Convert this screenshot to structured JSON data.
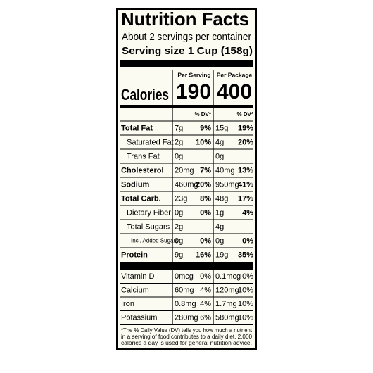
{
  "title": "Nutrition Facts",
  "servings": "About 2 servings per container",
  "serving_size": "Serving size 1 Cup (158g)",
  "columns": [
    "Per Serving",
    "Per Package"
  ],
  "calories": {
    "label": "Calories",
    "values": [
      "190",
      "400"
    ]
  },
  "dv_header": "% DV*",
  "nutrients": [
    {
      "name": "Total Fat",
      "bold": true,
      "indent": 0,
      "serving": [
        "7g",
        "9%"
      ],
      "package": [
        "15g",
        "19%"
      ]
    },
    {
      "name": "Saturated Fat",
      "bold": false,
      "indent": 1,
      "serving": [
        "2g",
        "10%"
      ],
      "package": [
        "4g",
        "20%"
      ]
    },
    {
      "name": "Trans Fat",
      "bold": false,
      "indent": 1,
      "serving": [
        "0g",
        null
      ],
      "package": [
        "0g",
        null
      ]
    },
    {
      "name": "Cholesterol",
      "bold": true,
      "indent": 0,
      "serving": [
        "20mg",
        "7%"
      ],
      "package": [
        "40mg",
        "13%"
      ]
    },
    {
      "name": "Sodium",
      "bold": true,
      "indent": 0,
      "serving": [
        "460mg",
        "20%"
      ],
      "package": [
        "950mg",
        "41%"
      ]
    },
    {
      "name": "Total Carb.",
      "bold": true,
      "indent": 0,
      "serving": [
        "23g",
        "8%"
      ],
      "package": [
        "48g",
        "17%"
      ]
    },
    {
      "name": "Dietary Fiber",
      "bold": false,
      "indent": 1,
      "serving": [
        "0g",
        "0%"
      ],
      "package": [
        "1g",
        "4%"
      ]
    },
    {
      "name": "Total Sugars",
      "bold": false,
      "indent": 1,
      "serving": [
        "2g",
        null
      ],
      "package": [
        "4g",
        null
      ]
    },
    {
      "name": "Incl. Added Sugars",
      "bold": false,
      "indent": 2,
      "serving": [
        "0g",
        "0%"
      ],
      "package": [
        "0g",
        "0%"
      ]
    },
    {
      "name": "Protein",
      "bold": true,
      "indent": 0,
      "serving": [
        "9g",
        "16%"
      ],
      "package": [
        "19g",
        "35%"
      ]
    }
  ],
  "vitamins": [
    {
      "name": "Vitamin D",
      "serving": [
        "0mcg",
        "0%"
      ],
      "package": [
        "0.1mcg",
        "0%"
      ]
    },
    {
      "name": "Calcium",
      "serving": [
        "60mg",
        "4%"
      ],
      "package": [
        "120mg",
        "10%"
      ]
    },
    {
      "name": "Iron",
      "serving": [
        "0.8mg",
        "4%"
      ],
      "package": [
        "1.7mg",
        "10%"
      ]
    },
    {
      "name": "Potassium",
      "serving": [
        "280mg",
        "6%"
      ],
      "package": [
        "580mg",
        "10%"
      ]
    }
  ],
  "footnote": [
    "*The % Daily Value (DV) tells you how much a nutrient",
    "in a serving of food contributes to a daily diet. 2,000",
    "calories a day is used for general nutrition advice."
  ]
}
